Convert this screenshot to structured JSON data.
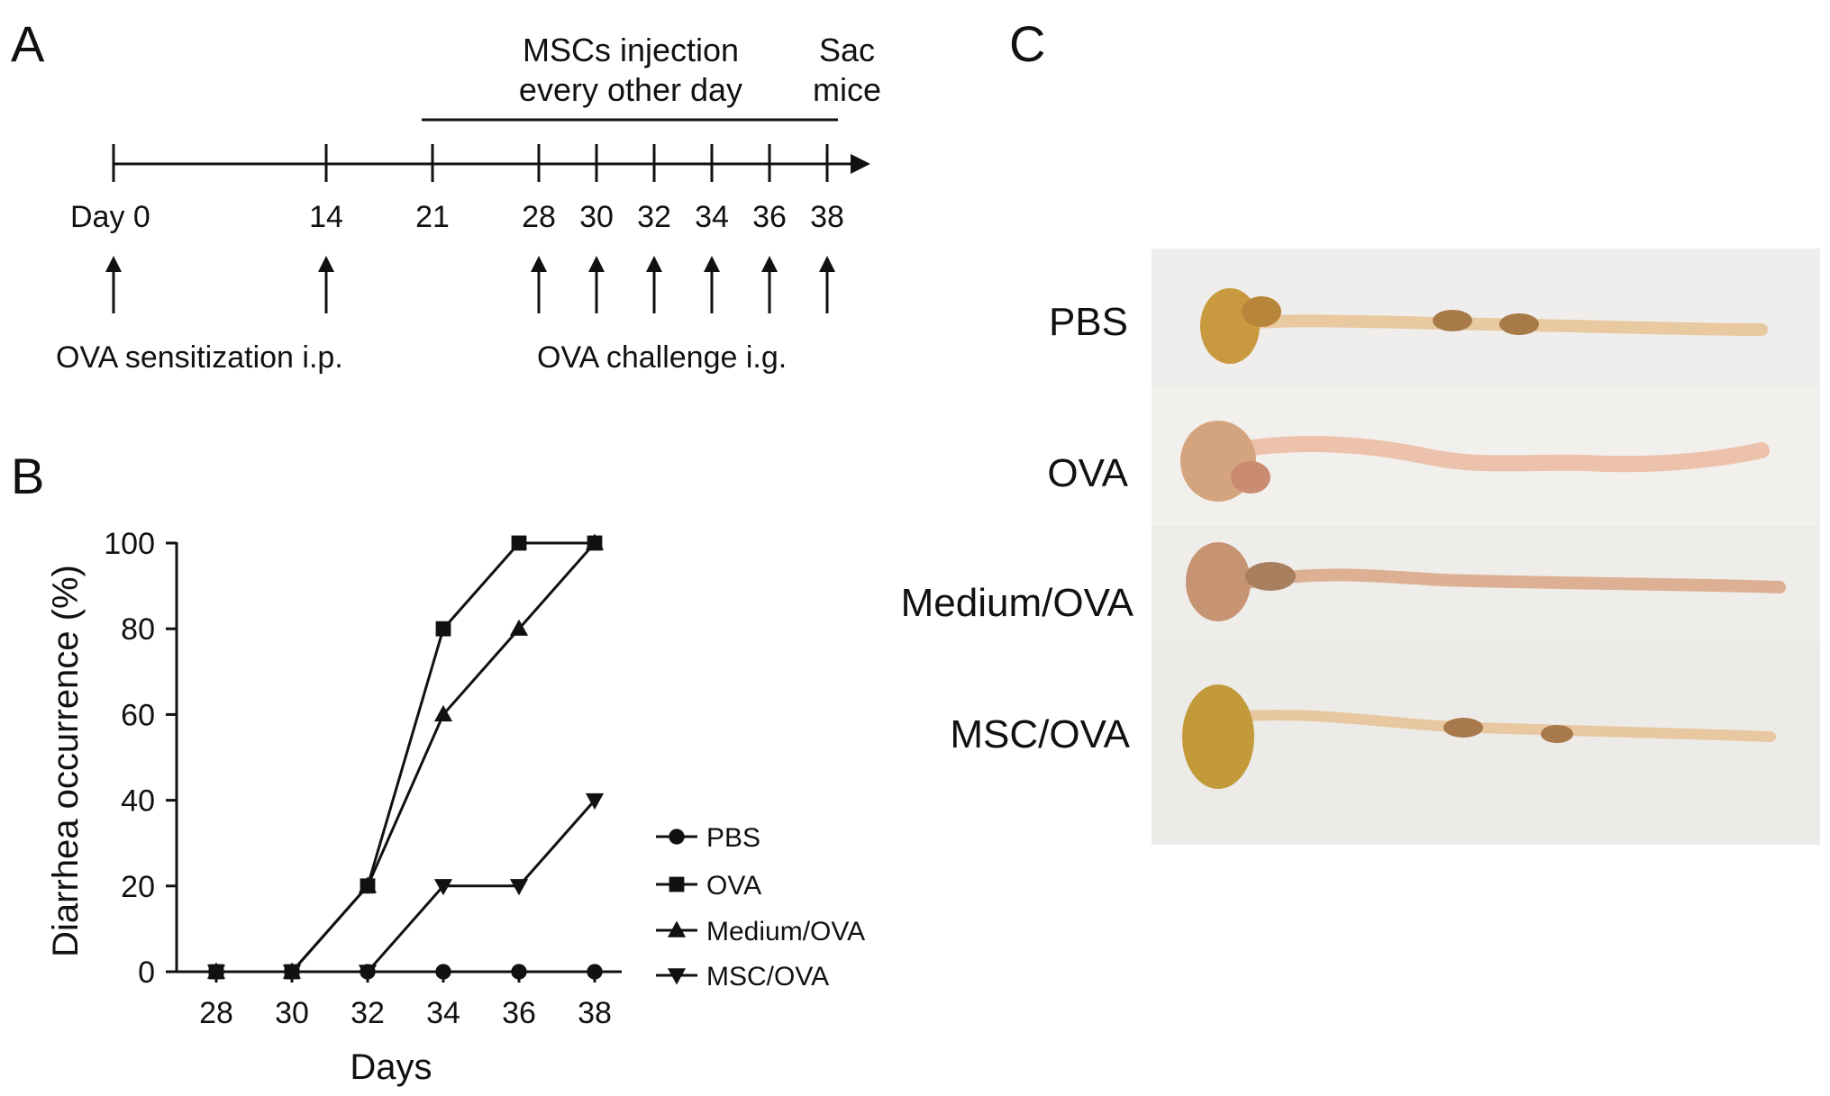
{
  "panel_a": {
    "letter": "A",
    "injection_label_1": "MSCs injection",
    "injection_label_2": "every other day",
    "sac_label_1": "Sac",
    "sac_label_2": "mice",
    "day_labels": [
      "Day 0",
      "14",
      "21",
      "28",
      "30",
      "32",
      "34",
      "36",
      "38"
    ],
    "sensitization_label": "OVA sensitization i.p.",
    "challenge_label": "OVA challenge i.g."
  },
  "panel_b": {
    "letter": "B"
  },
  "panel_c": {
    "letter": "C",
    "rows": [
      "PBS",
      "OVA",
      "Medium/OVA",
      "MSC/OVA"
    ]
  },
  "chart_data": {
    "type": "line",
    "xlabel": "Days",
    "ylabel": "Diarrhea occurrence (%)",
    "x": [
      28,
      30,
      32,
      34,
      36,
      38
    ],
    "xticks": [
      "28",
      "30",
      "32",
      "34",
      "36",
      "38"
    ],
    "yticks": [
      "0",
      "20",
      "40",
      "60",
      "80",
      "100"
    ],
    "ylim": [
      0,
      100
    ],
    "grid": false,
    "legend_position": "bottom-right",
    "series": [
      {
        "name": "PBS",
        "marker": "circle",
        "values": [
          0,
          0,
          0,
          0,
          0,
          0
        ]
      },
      {
        "name": "OVA",
        "marker": "square",
        "values": [
          0,
          0,
          20,
          80,
          100,
          100
        ]
      },
      {
        "name": "Medium/OVA",
        "marker": "triangle-up",
        "values": [
          0,
          0,
          20,
          60,
          80,
          100
        ]
      },
      {
        "name": "MSC/OVA",
        "marker": "triangle-down",
        "values": [
          0,
          0,
          0,
          20,
          20,
          40
        ]
      }
    ]
  },
  "colors": {
    "ink": "#111111",
    "photo_background": "#ecebe8",
    "tissue": "#e6c49a",
    "stomach": "#c7983e"
  }
}
